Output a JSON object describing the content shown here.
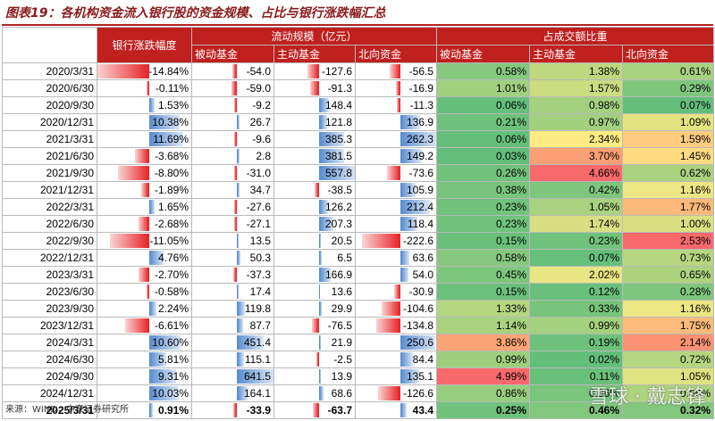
{
  "title": "图表19：各机构资金流入银行股的资金规模、占比与银行涨跌幅汇总",
  "headers": {
    "bank_change": "银行涨跌幅度",
    "flow_group": "流动规模（亿元）",
    "share_group": "占成交额比重",
    "passive": "被动基金",
    "active": "主动基金",
    "northbound": "北向资金"
  },
  "rows": [
    {
      "date": "2020/3/31",
      "chg": "-14.84%",
      "flow": [
        "-54.0",
        "-127.6",
        "-56.5"
      ],
      "share": [
        "0.58%",
        "1.38%",
        "0.61%"
      ]
    },
    {
      "date": "2020/6/30",
      "chg": "-0.11%",
      "flow": [
        "-59.0",
        "-91.3",
        "-16.9"
      ],
      "share": [
        "1.01%",
        "1.57%",
        "0.29%"
      ]
    },
    {
      "date": "2020/9/30",
      "chg": "1.53%",
      "flow": [
        "-9.2",
        "148.4",
        "-11.3"
      ],
      "share": [
        "0.06%",
        "0.98%",
        "0.07%"
      ]
    },
    {
      "date": "2020/12/31",
      "chg": "10.38%",
      "flow": [
        "26.7",
        "121.8",
        "136.9"
      ],
      "share": [
        "0.21%",
        "0.97%",
        "1.09%"
      ]
    },
    {
      "date": "2021/3/31",
      "chg": "11.69%",
      "flow": [
        "-9.6",
        "385.3",
        "262.3"
      ],
      "share": [
        "0.06%",
        "2.34%",
        "1.59%"
      ]
    },
    {
      "date": "2021/6/30",
      "chg": "-3.68%",
      "flow": [
        "2.8",
        "381.5",
        "149.2"
      ],
      "share": [
        "0.03%",
        "3.70%",
        "1.45%"
      ]
    },
    {
      "date": "2021/9/30",
      "chg": "-8.80%",
      "flow": [
        "-31.0",
        "557.8",
        "-73.6"
      ],
      "share": [
        "0.26%",
        "4.66%",
        "0.62%"
      ]
    },
    {
      "date": "2021/12/31",
      "chg": "-1.89%",
      "flow": [
        "34.7",
        "-38.5",
        "105.9"
      ],
      "share": [
        "0.38%",
        "0.42%",
        "1.16%"
      ]
    },
    {
      "date": "2022/3/31",
      "chg": "1.65%",
      "flow": [
        "-27.6",
        "126.2",
        "212.4"
      ],
      "share": [
        "0.23%",
        "1.05%",
        "1.77%"
      ]
    },
    {
      "date": "2022/6/30",
      "chg": "-2.68%",
      "flow": [
        "-27.1",
        "207.3",
        "118.4"
      ],
      "share": [
        "0.23%",
        "1.74%",
        "1.00%"
      ]
    },
    {
      "date": "2022/9/30",
      "chg": "-11.05%",
      "flow": [
        "13.5",
        "20.5",
        "-222.6"
      ],
      "share": [
        "0.15%",
        "0.23%",
        "2.53%"
      ]
    },
    {
      "date": "2022/12/31",
      "chg": "4.76%",
      "flow": [
        "50.3",
        "6.5",
        "63.6"
      ],
      "share": [
        "0.58%",
        "0.07%",
        "0.73%"
      ]
    },
    {
      "date": "2023/3/31",
      "chg": "-2.70%",
      "flow": [
        "-37.3",
        "166.9",
        "54.0"
      ],
      "share": [
        "0.45%",
        "2.02%",
        "0.65%"
      ]
    },
    {
      "date": "2023/6/30",
      "chg": "-0.58%",
      "flow": [
        "17.4",
        "13.6",
        "-30.9"
      ],
      "share": [
        "0.15%",
        "0.12%",
        "0.28%"
      ]
    },
    {
      "date": "2023/9/30",
      "chg": "2.24%",
      "flow": [
        "119.8",
        "29.9",
        "-104.6"
      ],
      "share": [
        "1.33%",
        "0.33%",
        "1.16%"
      ]
    },
    {
      "date": "2023/12/31",
      "chg": "-6.61%",
      "flow": [
        "87.7",
        "-76.5",
        "-134.8"
      ],
      "share": [
        "1.14%",
        "0.99%",
        "1.75%"
      ]
    },
    {
      "date": "2024/3/31",
      "chg": "10.60%",
      "flow": [
        "451.4",
        "21.9",
        "250.6"
      ],
      "share": [
        "3.86%",
        "0.19%",
        "2.14%"
      ]
    },
    {
      "date": "2024/6/30",
      "chg": "5.81%",
      "flow": [
        "115.1",
        "-2.5",
        "84.4"
      ],
      "share": [
        "0.99%",
        "0.02%",
        "0.72%"
      ]
    },
    {
      "date": "2024/9/30",
      "chg": "9.31%",
      "flow": [
        "641.5",
        "13.9",
        "135.1"
      ],
      "share": [
        "4.99%",
        "0.11%",
        "1.05%"
      ]
    },
    {
      "date": "2024/12/31",
      "chg": "10.03%",
      "flow": [
        "164.1",
        "68.6",
        "-126.6"
      ],
      "share": [
        "0.86%",
        "0.36%",
        "0.66%"
      ]
    },
    {
      "date": "2025/3/31",
      "chg": "0.91%",
      "flow": [
        "-33.9",
        "-63.7",
        "43.4"
      ],
      "share": [
        "0.25%",
        "0.46%",
        "0.32%"
      ]
    }
  ],
  "footer": "来源：WIND，中泰证券研究所",
  "watermark": "雪球 · 戴志锋",
  "colors": {
    "header_bg": "#c0201e",
    "neg_bar": "#e8262a",
    "pos_bar": "#5b8fd0",
    "scale_low": "#63be7b",
    "scale_mid": "#ffeb84",
    "scale_high": "#f8696b",
    "title": "#8b1a1a"
  }
}
